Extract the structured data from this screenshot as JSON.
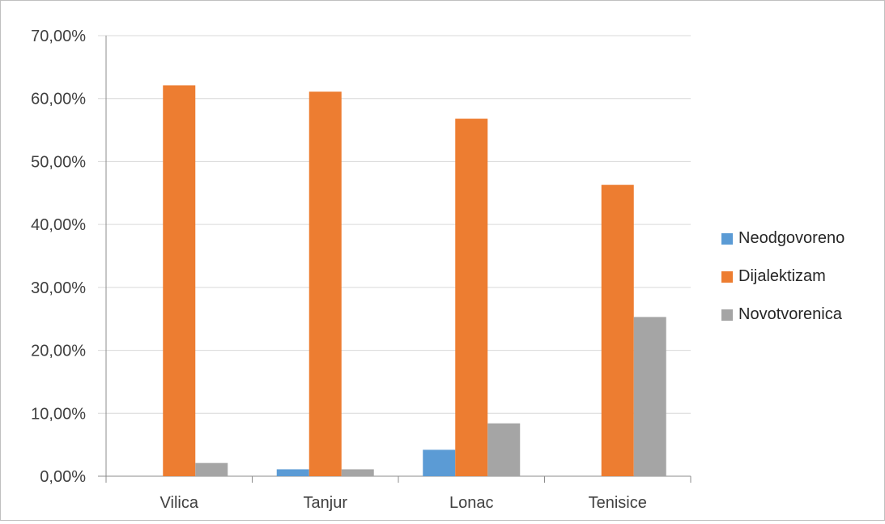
{
  "chart_data": {
    "type": "bar",
    "title": "",
    "xlabel": "",
    "ylabel": "",
    "categories": [
      "Vilica",
      "Tanjur",
      "Lonac",
      "Tenisice"
    ],
    "series": [
      {
        "name": "Neodgovoreno",
        "color": "#5b9bd5",
        "values": [
          0.0,
          1.1,
          4.2,
          0.0
        ]
      },
      {
        "name": "Dijalektizam",
        "color": "#ed7d31",
        "values": [
          62.1,
          61.1,
          56.8,
          46.3
        ]
      },
      {
        "name": "Novotvorenica",
        "color": "#a5a5a5",
        "values": [
          2.1,
          1.1,
          8.4,
          25.3
        ]
      }
    ],
    "ylim": [
      0,
      70
    ],
    "yticks": [
      "0,00%",
      "10,00%",
      "20,00%",
      "30,00%",
      "40,00%",
      "50,00%",
      "60,00%",
      "70,00%"
    ],
    "grid": true,
    "legend": "right"
  }
}
